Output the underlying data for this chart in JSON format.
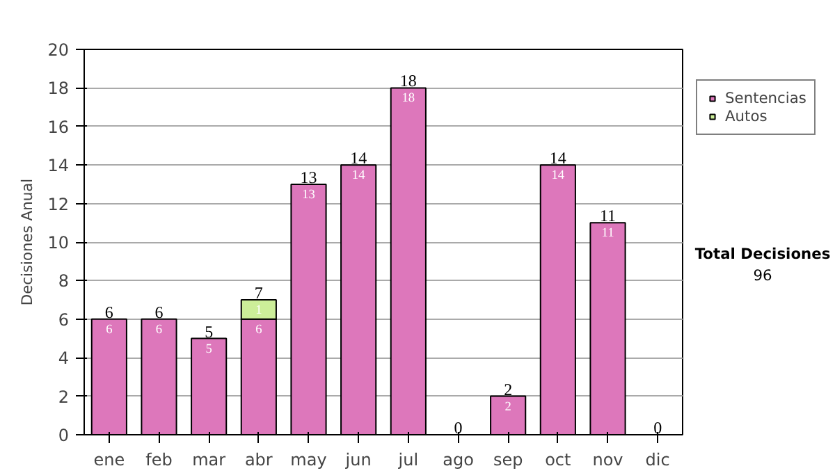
{
  "chart_data": {
    "type": "bar",
    "stacked": true,
    "ylabel": "Decisiones Anual",
    "categories": [
      "ene",
      "feb",
      "mar",
      "abr",
      "may",
      "jun",
      "jul",
      "ago",
      "sep",
      "oct",
      "nov",
      "dic"
    ],
    "series": [
      {
        "name": "Sentencias",
        "color": "#dd77bb",
        "values": [
          6,
          6,
          5,
          6,
          13,
          14,
          18,
          0,
          2,
          14,
          11,
          0
        ],
        "value_labels": [
          "6",
          "6",
          "5",
          "6",
          "13",
          "14",
          "18",
          null,
          "2",
          "14",
          "11",
          null
        ]
      },
      {
        "name": "Autos",
        "color": "#ccee99",
        "values": [
          0,
          0,
          0,
          1,
          0,
          0,
          0,
          0,
          0,
          0,
          0,
          0
        ],
        "value_labels": [
          null,
          null,
          null,
          "1",
          null,
          null,
          null,
          null,
          null,
          null,
          null,
          null
        ]
      }
    ],
    "totals": [
      "6",
      "6",
      "5",
      "7",
      "13",
      "14",
      "18",
      "0",
      "2",
      "14",
      "11",
      "0"
    ],
    "ylim": [
      0,
      20
    ],
    "yticks": [
      0,
      2,
      4,
      6,
      8,
      10,
      12,
      14,
      16,
      18,
      20
    ],
    "grid": "y",
    "legend": "right",
    "annotations": [
      "Total Decisiones",
      "96"
    ]
  }
}
